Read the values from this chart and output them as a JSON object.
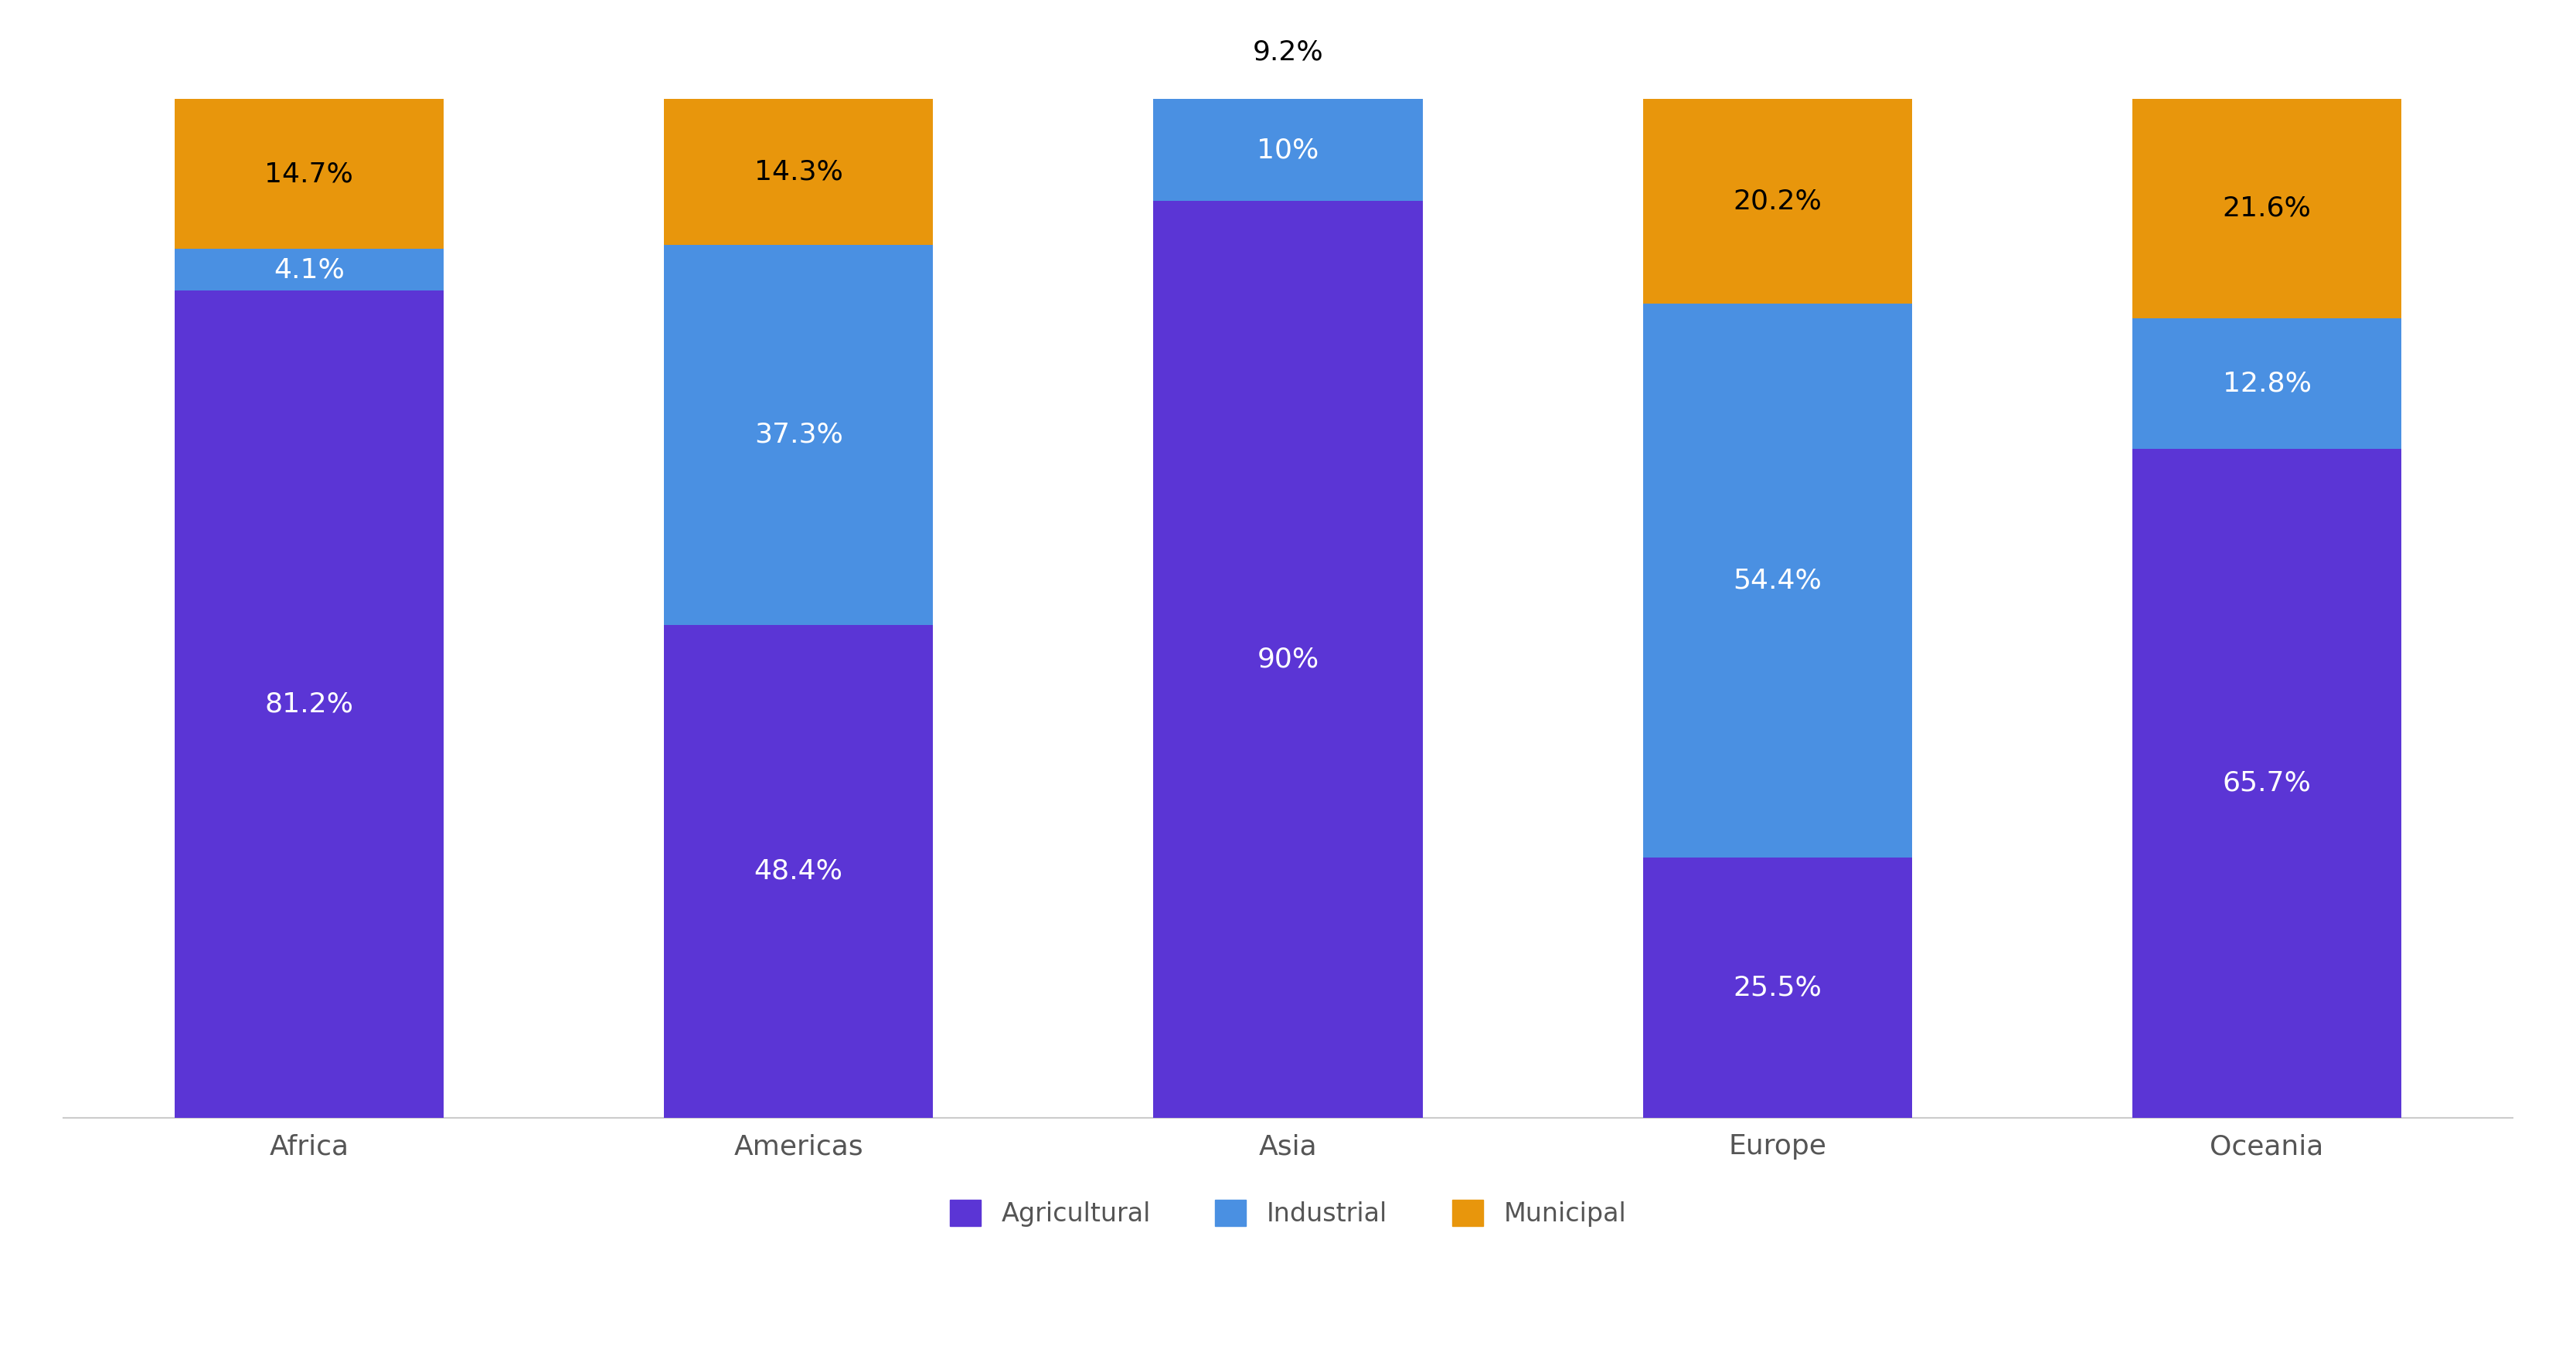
{
  "categories": [
    "Africa",
    "Americas",
    "Asia",
    "Europe",
    "Oceania"
  ],
  "agricultural": [
    81.2,
    48.4,
    90.0,
    25.5,
    65.7
  ],
  "industrial": [
    4.1,
    37.3,
    10.0,
    54.4,
    12.8
  ],
  "municipal": [
    14.7,
    14.3,
    9.2,
    20.2,
    21.6
  ],
  "colors": {
    "agricultural": "#5B35D5",
    "industrial": "#4A90E2",
    "municipal": "#E8960C"
  },
  "municipal_label_color": "#000000",
  "bar_label_color": "#FFFFFF",
  "bar_width": 0.55,
  "background_color": "#FFFFFF",
  "font_family": "DejaVu Sans",
  "label_fontsize": 26,
  "legend_fontsize": 24,
  "tick_fontsize": 26,
  "legend_labels": [
    "Agricultural",
    "Industrial",
    "Municipal"
  ],
  "ylim": [
    0,
    100
  ],
  "labels": {
    "agricultural": [
      "81.2%",
      "48.4%",
      "90%",
      "25.5%",
      "65.7%"
    ],
    "industrial": [
      "4.1%",
      "37.3%",
      "10%",
      "54.4%",
      "12.8%"
    ],
    "municipal": [
      "14.7%",
      "14.3%",
      "9.2%",
      "20.2%",
      "21.6%"
    ]
  }
}
